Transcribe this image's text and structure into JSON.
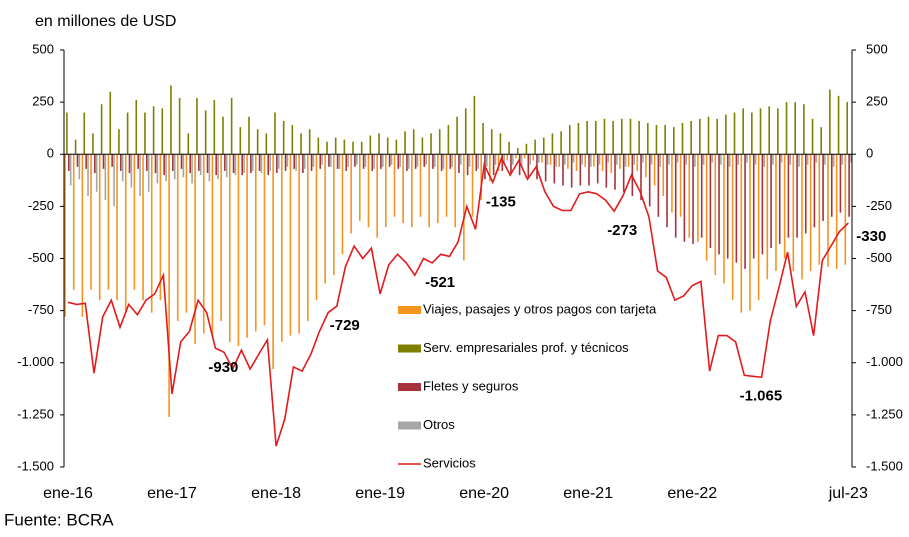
{
  "chart_data": {
    "type": "bar",
    "y_label": "en millones de USD",
    "source": "Fuente: BCRA",
    "categories": [
      "ene-16",
      null,
      null,
      null,
      null,
      null,
      null,
      null,
      null,
      null,
      null,
      null,
      "ene-17",
      null,
      null,
      null,
      null,
      null,
      null,
      null,
      null,
      null,
      null,
      null,
      "ene-18",
      null,
      null,
      null,
      null,
      null,
      null,
      null,
      null,
      null,
      null,
      null,
      "ene-19",
      null,
      null,
      null,
      null,
      null,
      null,
      null,
      null,
      null,
      null,
      null,
      "ene-20",
      null,
      null,
      null,
      null,
      null,
      null,
      null,
      null,
      null,
      null,
      null,
      "ene-21",
      null,
      null,
      null,
      null,
      null,
      null,
      null,
      null,
      null,
      null,
      null,
      "ene-22",
      null,
      null,
      null,
      null,
      null,
      null,
      null,
      null,
      null,
      null,
      null,
      null,
      null,
      null,
      null,
      null,
      null,
      "jul-23"
    ],
    "ylim": [
      -1500,
      500
    ],
    "yticks": [
      500,
      250,
      0,
      -250,
      -500,
      -750,
      {
        "value": -1000,
        "label": "-1.000"
      },
      {
        "value": -1250,
        "label": "-1.250"
      },
      {
        "value": -1500,
        "label": "-1.500"
      }
    ],
    "series": [
      {
        "name": "Viajes, pasajes y otros pagos con tarjeta",
        "type": "bar",
        "color": "#f7941d",
        "values": [
          -780,
          -650,
          -780,
          -650,
          -700,
          -650,
          -700,
          -750,
          -650,
          -700,
          -760,
          -700,
          -1260,
          -800,
          -760,
          -910,
          -860,
          -880,
          -800,
          -900,
          -920,
          -880,
          -850,
          -820,
          -1030,
          -900,
          -870,
          -860,
          -800,
          -700,
          -620,
          -580,
          -480,
          -380,
          -320,
          -350,
          -400,
          -350,
          -300,
          -330,
          -350,
          -300,
          -350,
          -330,
          -300,
          -350,
          -510,
          -300,
          -220,
          -130,
          -80,
          -30,
          -20,
          -20,
          -30,
          -40,
          -50,
          -60,
          -70,
          -80,
          -60,
          -60,
          -80,
          -90,
          -70,
          -60,
          -80,
          -110,
          -150,
          -200,
          -280,
          -300,
          -400,
          -420,
          -510,
          -580,
          -620,
          -700,
          -760,
          -750,
          -700,
          -600,
          -560,
          -500,
          -560,
          -600,
          -560,
          -530,
          -540,
          -550,
          -530
        ]
      },
      {
        "name": "Serv. empresariales prof. y técnicos",
        "type": "bar",
        "color": "#7f7f00",
        "values": [
          200,
          70,
          200,
          100,
          240,
          300,
          120,
          200,
          260,
          200,
          230,
          220,
          330,
          270,
          100,
          270,
          210,
          260,
          180,
          270,
          130,
          180,
          120,
          100,
          200,
          160,
          140,
          100,
          120,
          80,
          60,
          80,
          70,
          60,
          60,
          90,
          100,
          80,
          70,
          110,
          120,
          80,
          100,
          120,
          140,
          180,
          220,
          280,
          150,
          120,
          100,
          60,
          30,
          50,
          70,
          80,
          100,
          110,
          140,
          150,
          160,
          160,
          170,
          160,
          170,
          170,
          160,
          150,
          140,
          140,
          130,
          150,
          160,
          170,
          180,
          170,
          190,
          200,
          220,
          200,
          220,
          230,
          220,
          250,
          250,
          240,
          170,
          130,
          310,
          280,
          250
        ]
      },
      {
        "name": "Fletes y seguros",
        "type": "bar",
        "color": "#a5323c",
        "values": [
          -80,
          -60,
          -70,
          -90,
          -70,
          -60,
          -80,
          -90,
          -70,
          -80,
          -90,
          -100,
          -80,
          -70,
          -90,
          -80,
          -90,
          -100,
          -80,
          -90,
          -100,
          -90,
          -80,
          -100,
          -90,
          -80,
          -70,
          -90,
          -80,
          -70,
          -60,
          -70,
          -80,
          -60,
          -70,
          -80,
          -70,
          -60,
          -70,
          -80,
          -70,
          -60,
          -70,
          -80,
          -70,
          -90,
          -100,
          -80,
          -120,
          -100,
          -80,
          -90,
          -100,
          -110,
          -120,
          -130,
          -140,
          -150,
          -160,
          -150,
          -150,
          -140,
          -160,
          -170,
          -180,
          -200,
          -220,
          -250,
          -300,
          -350,
          -400,
          -420,
          -430,
          -400,
          -450,
          -480,
          -500,
          -520,
          -550,
          -500,
          -480,
          -450,
          -430,
          -400,
          -400,
          -380,
          -350,
          -320,
          -300,
          -280,
          -300
        ]
      },
      {
        "name": "Otros",
        "type": "bar",
        "color": "#a6a6a6",
        "values": [
          -150,
          -120,
          -200,
          -180,
          -220,
          -250,
          -130,
          -160,
          -200,
          -180,
          -140,
          -130,
          -120,
          -110,
          -140,
          -100,
          -130,
          -120,
          -110,
          -100,
          -90,
          -80,
          -90,
          -80,
          -70,
          -60,
          -80,
          -70,
          -60,
          -50,
          -60,
          -70,
          -60,
          -50,
          -60,
          -70,
          -60,
          -50,
          -60,
          -70,
          -60,
          -50,
          -60,
          -70,
          -60,
          -50,
          -60,
          -70,
          -60,
          -50,
          -40,
          -50,
          -60,
          -50,
          -40,
          -50,
          -60,
          -50,
          -40,
          -50,
          -60,
          -50,
          -40,
          -50,
          -60,
          -50,
          -40,
          -50,
          -60,
          -50,
          -40,
          -50,
          -60,
          -50,
          -40,
          -50,
          -60,
          -50,
          -40,
          -50,
          -60,
          -50,
          -40,
          -50,
          -60,
          -50,
          -40,
          -50,
          -60,
          -50,
          -40
        ]
      },
      {
        "name": "Servicios",
        "type": "line",
        "color": "#e31a1c",
        "values": [
          -710,
          -720,
          -715,
          -1050,
          -780,
          -700,
          -830,
          -720,
          -770,
          -700,
          -670,
          -580,
          -1150,
          -900,
          -850,
          -700,
          -760,
          -930,
          -950,
          -1030,
          -940,
          -1030,
          -960,
          -890,
          -1400,
          -1270,
          -1020,
          -1040,
          -960,
          -850,
          -760,
          -729,
          -540,
          -440,
          -500,
          -450,
          -670,
          -530,
          -480,
          -520,
          -580,
          -500,
          -521,
          -480,
          -490,
          -420,
          -250,
          -360,
          -50,
          -135,
          -20,
          -100,
          -30,
          -120,
          -60,
          -180,
          -250,
          -270,
          -270,
          -190,
          -180,
          -190,
          -220,
          -273,
          -200,
          -100,
          -180,
          -300,
          -560,
          -590,
          -700,
          -680,
          -630,
          -610,
          -1040,
          -870,
          -870,
          -900,
          -1060,
          -1065,
          -1070,
          -800,
          -640,
          -470,
          -730,
          -660,
          -870,
          -510,
          -440,
          -370,
          -330
        ],
        "value_labels": [
          null,
          null,
          null,
          null,
          null,
          null,
          null,
          null,
          null,
          null,
          null,
          null,
          null,
          null,
          null,
          null,
          null,
          "-930",
          null,
          null,
          null,
          null,
          null,
          null,
          null,
          null,
          null,
          null,
          null,
          null,
          null,
          "-729",
          null,
          null,
          null,
          null,
          null,
          null,
          null,
          null,
          null,
          null,
          "-521",
          null,
          null,
          null,
          null,
          null,
          null,
          "-135",
          null,
          null,
          null,
          null,
          null,
          null,
          null,
          null,
          null,
          null,
          null,
          null,
          null,
          "-273",
          null,
          null,
          null,
          null,
          null,
          null,
          null,
          null,
          null,
          null,
          null,
          null,
          null,
          null,
          null,
          "-1.065",
          null,
          null,
          null,
          null,
          null,
          null,
          null,
          null,
          null,
          null,
          "-330"
        ]
      }
    ]
  }
}
